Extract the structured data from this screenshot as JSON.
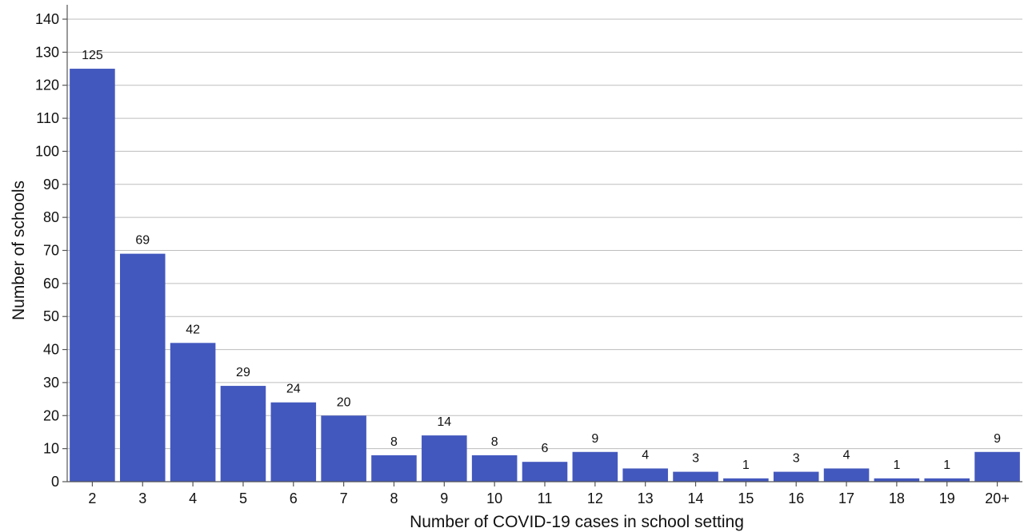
{
  "chart_data": {
    "type": "bar",
    "title": "",
    "xlabel": "Number of COVID-19 cases in school setting",
    "ylabel": "Number of schools",
    "categories": [
      "2",
      "3",
      "4",
      "5",
      "6",
      "7",
      "8",
      "9",
      "10",
      "11",
      "12",
      "13",
      "14",
      "15",
      "16",
      "17",
      "18",
      "19",
      "20+"
    ],
    "values": [
      125,
      69,
      42,
      29,
      24,
      20,
      8,
      14,
      8,
      6,
      9,
      4,
      3,
      1,
      3,
      4,
      1,
      1,
      9
    ],
    "ylim": [
      0,
      140
    ],
    "yticks": [
      0,
      10,
      20,
      30,
      40,
      50,
      60,
      70,
      80,
      90,
      100,
      110,
      120,
      130,
      140
    ],
    "grid": "horizontal",
    "legend": "none",
    "bar_color": "#4358BE",
    "data_labels": true
  }
}
